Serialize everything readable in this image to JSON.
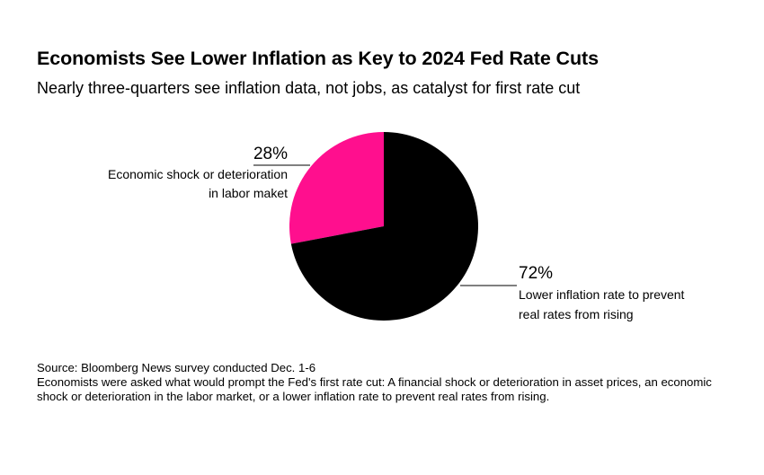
{
  "chart_data": {
    "type": "pie",
    "title": "Economists See Lower Inflation as Key to 2024 Fed Rate Cuts",
    "subtitle": "Nearly three-quarters see inflation data, not jobs, as catalyst for first rate cut",
    "slices": [
      {
        "label": "Economic shock or deterioration in labor maket",
        "value": 28,
        "value_label": "28%",
        "color": "#ff0f8e"
      },
      {
        "label": "Lower inflation rate to prevent real rates from rising",
        "value": 72,
        "value_label": "72%",
        "color": "#000000"
      }
    ],
    "legend": "none"
  },
  "labels": {
    "left": {
      "pct": "28%",
      "line1": "Economic shock or deterioration",
      "line2": "in labor maket"
    },
    "right": {
      "pct": "72%",
      "line1": "Lower inflation rate to prevent",
      "line2": "real rates from rising"
    }
  },
  "footer": {
    "source": "Source: Bloomberg News survey conducted Dec. 1-6",
    "note": "Economists were asked what would prompt the Fed's first rate cut: A financial shock or deterioration in asset prices, an economic shock or deterioration in the labor market, or a lower inflation rate to prevent real rates from rising."
  }
}
